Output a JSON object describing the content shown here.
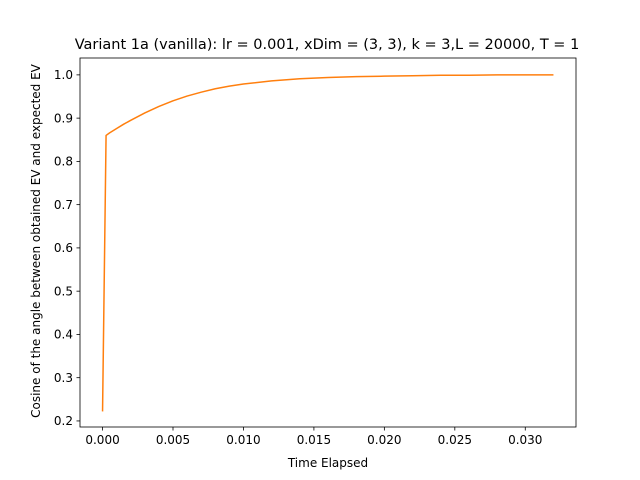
{
  "chart_data": {
    "type": "line",
    "title": "Variant 1a (vanilla): lr = 0.001, xDim = (3, 3), k = 3,L = 20000, T = 1",
    "xlabel": "Time Elapsed",
    "ylabel": "Cosine of the angle between obtained EV and expected EV",
    "xlim": [
      -0.0016,
      0.0336
    ],
    "ylim": [
      0.186,
      1.039
    ],
    "xticks": [
      0.0,
      0.005,
      0.01,
      0.015,
      0.02,
      0.025,
      0.03
    ],
    "xtick_labels": [
      "0.000",
      "0.005",
      "0.010",
      "0.015",
      "0.020",
      "0.025",
      "0.030"
    ],
    "yticks": [
      0.2,
      0.3,
      0.4,
      0.5,
      0.6,
      0.7,
      0.8,
      0.9,
      1.0
    ],
    "ytick_labels": [
      "0.2",
      "0.3",
      "0.4",
      "0.5",
      "0.6",
      "0.7",
      "0.8",
      "0.9",
      "1.0"
    ],
    "grid": false,
    "series": [
      {
        "color": "#ff7f0e",
        "x": [
          0.0,
          0.00025,
          0.0005,
          0.001,
          0.0015,
          0.002,
          0.003,
          0.004,
          0.005,
          0.006,
          0.007,
          0.008,
          0.009,
          0.01,
          0.012,
          0.014,
          0.016,
          0.018,
          0.02,
          0.022,
          0.024,
          0.026,
          0.028,
          0.03,
          0.032
        ],
        "y": [
          0.222,
          0.86,
          0.866,
          0.876,
          0.886,
          0.895,
          0.912,
          0.927,
          0.94,
          0.951,
          0.96,
          0.968,
          0.974,
          0.979,
          0.986,
          0.991,
          0.994,
          0.996,
          0.997,
          0.998,
          0.999,
          0.999,
          1.0,
          1.0,
          1.0
        ]
      }
    ]
  }
}
